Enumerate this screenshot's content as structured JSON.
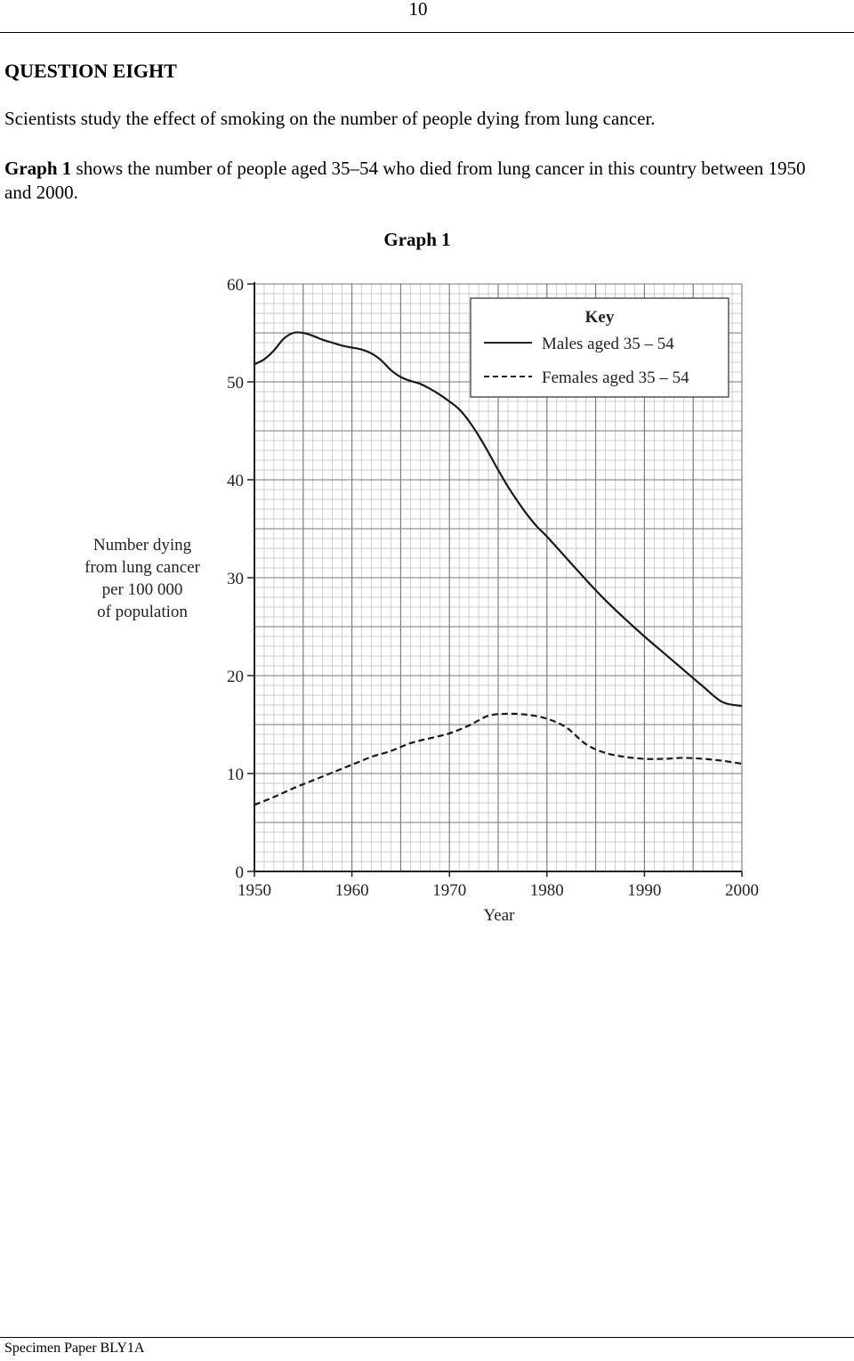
{
  "page": {
    "number": "10",
    "question_title": "QUESTION EIGHT",
    "intro": "Scientists study the effect of smoking on the number of people dying from lung cancer.",
    "graph_para_bold": "Graph 1",
    "graph_para_rest": " shows the number of people aged 35–54 who died from lung cancer in this country between 1950 and 2000.",
    "graph_heading": "Graph 1",
    "footer": "Specimen Paper  BLY1A"
  },
  "chart_data": {
    "type": "line",
    "title": "Graph 1",
    "xlabel": "Year",
    "ylabel": "Number dying from lung cancer per 100 000 of population",
    "ylabel_lines": [
      "Number dying",
      "from lung cancer",
      "per 100 000",
      "of population"
    ],
    "xlim": [
      1950,
      2000
    ],
    "ylim": [
      0,
      60
    ],
    "x_ticks": [
      1950,
      1960,
      1970,
      1980,
      1990,
      2000
    ],
    "y_ticks": [
      0,
      10,
      20,
      30,
      40,
      50,
      60
    ],
    "grid": true,
    "legend_title": "Key",
    "legend_position": "top-right",
    "series": [
      {
        "name": "Males aged 35 – 54",
        "style": "solid",
        "x": [
          1950,
          1951,
          1952,
          1953,
          1954,
          1955,
          1956,
          1957,
          1958,
          1959,
          1960,
          1961,
          1962,
          1963,
          1964,
          1965,
          1966,
          1967,
          1968,
          1969,
          1970,
          1971,
          1972,
          1973,
          1974,
          1975,
          1976,
          1977,
          1978,
          1979,
          1980,
          1982,
          1984,
          1986,
          1988,
          1990,
          1992,
          1994,
          1996,
          1998,
          2000
        ],
        "y": [
          51.8,
          52.3,
          53.2,
          54.4,
          55.0,
          55.0,
          54.7,
          54.3,
          54.0,
          53.7,
          53.5,
          53.3,
          52.9,
          52.2,
          51.2,
          50.5,
          50.1,
          49.8,
          49.3,
          48.7,
          48.0,
          47.2,
          46.0,
          44.5,
          42.8,
          41.0,
          39.3,
          37.8,
          36.4,
          35.2,
          34.2,
          32.0,
          29.8,
          27.7,
          25.8,
          24.0,
          22.3,
          20.6,
          18.9,
          17.3,
          16.9
        ]
      },
      {
        "name": "Females aged 35 – 54",
        "style": "dashed",
        "x": [
          1950,
          1952,
          1954,
          1956,
          1958,
          1960,
          1962,
          1964,
          1966,
          1968,
          1970,
          1972,
          1974,
          1976,
          1978,
          1980,
          1982,
          1984,
          1986,
          1988,
          1990,
          1992,
          1994,
          1996,
          1998,
          2000
        ],
        "y": [
          6.8,
          7.6,
          8.5,
          9.3,
          10.1,
          10.9,
          11.7,
          12.3,
          13.1,
          13.6,
          14.1,
          14.9,
          15.9,
          16.1,
          16.0,
          15.6,
          14.7,
          13.0,
          12.1,
          11.7,
          11.5,
          11.5,
          11.6,
          11.5,
          11.3,
          11.0
        ]
      }
    ]
  }
}
